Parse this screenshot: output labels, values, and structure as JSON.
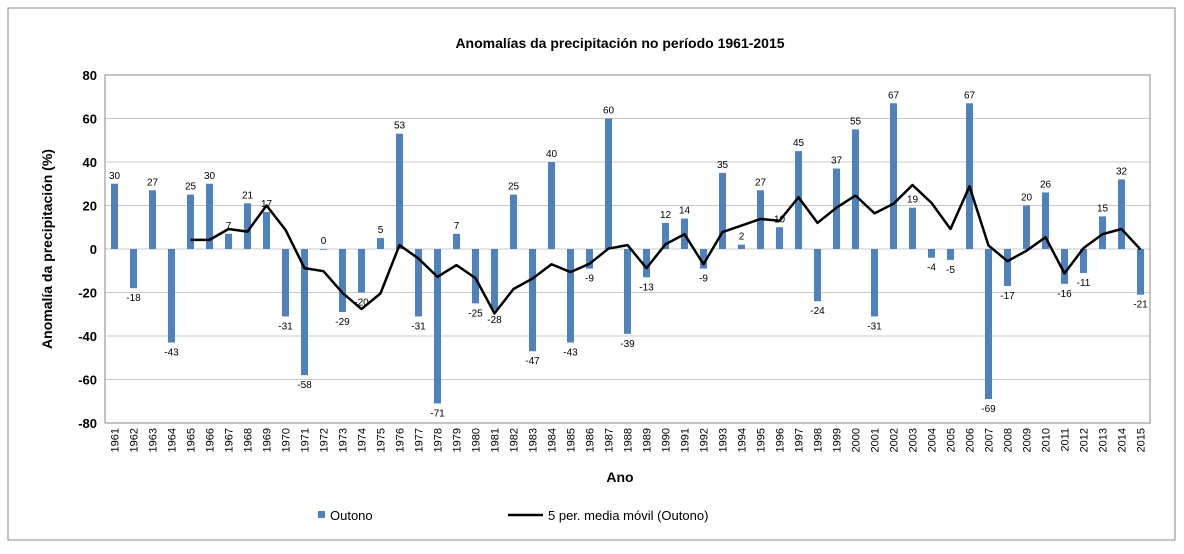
{
  "chart_data": {
    "type": "bar",
    "title": "Anomalías da precipitación no período 1961-2015",
    "x_label": "Ano",
    "y_label": "Anomalía da precipitación (%)",
    "categories": [
      "1961",
      "1962",
      "1963",
      "1964",
      "1965",
      "1966",
      "1967",
      "1968",
      "1969",
      "1970",
      "1971",
      "1972",
      "1973",
      "1974",
      "1975",
      "1976",
      "1977",
      "1978",
      "1979",
      "1980",
      "1981",
      "1982",
      "1983",
      "1984",
      "1985",
      "1986",
      "1987",
      "1988",
      "1989",
      "1990",
      "1991",
      "1992",
      "1993",
      "1994",
      "1995",
      "1996",
      "1997",
      "1998",
      "1999",
      "2000",
      "2001",
      "2002",
      "2003",
      "2004",
      "2005",
      "2006",
      "2007",
      "2008",
      "2009",
      "2010",
      "2011",
      "2012",
      "2013",
      "2014",
      "2015"
    ],
    "series": [
      {
        "name": "Outono",
        "type": "bar",
        "color": "#4f81bd",
        "data_labels": true,
        "values": [
          30,
          -18,
          27,
          -43,
          25,
          30,
          7,
          21,
          17,
          -31,
          -58,
          0,
          -29,
          -20,
          5,
          53,
          -31,
          -71,
          7,
          -25,
          -28,
          25,
          -47,
          40,
          -43,
          -9,
          60,
          -39,
          -13,
          12,
          14,
          -9,
          35,
          2,
          27,
          10,
          45,
          -24,
          37,
          55,
          -31,
          67,
          19,
          -4,
          -5,
          67,
          -69,
          -17,
          20,
          26,
          -16,
          -11,
          15,
          32,
          -21
        ]
      },
      {
        "name": "5 per. media móvil (Outono)",
        "type": "line",
        "color": "#000000",
        "values": [
          null,
          null,
          null,
          null,
          4.2,
          4.2,
          9.2,
          8,
          20,
          8.8,
          -8.8,
          -10.2,
          -20.2,
          -27.6,
          -20.4,
          1.8,
          -4.4,
          -12.8,
          -7.4,
          -13.4,
          -29.6,
          -18.4,
          -13.6,
          -7,
          -10.6,
          -6.8,
          0.2,
          1.8,
          -8.8,
          2.2,
          6.8,
          -7,
          7.8,
          10.8,
          13.8,
          13,
          23.8,
          12,
          19,
          24.6,
          16.4,
          20.8,
          29.4,
          21.2,
          9.2,
          28.8,
          1.6,
          -5.6,
          -0.8,
          5.4,
          -11.2,
          0.4,
          6.8,
          9.2,
          -0.2
        ]
      }
    ],
    "ylim": [
      -80,
      80
    ],
    "yticks": [
      -80,
      -60,
      -40,
      -20,
      0,
      20,
      40,
      60,
      80
    ],
    "grid": true,
    "legend": "bottom"
  }
}
